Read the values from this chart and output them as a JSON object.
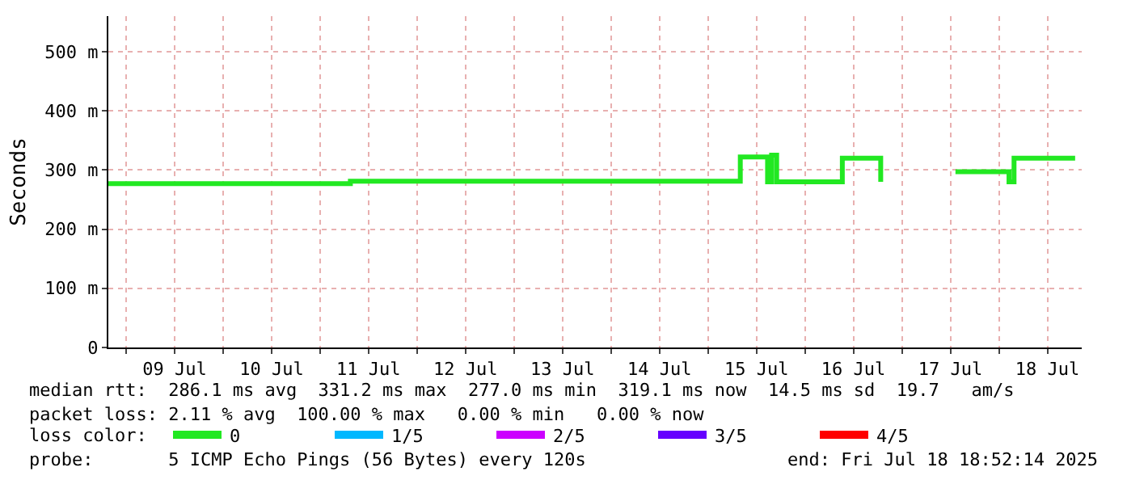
{
  "chart_data": {
    "type": "step",
    "ylabel": "Seconds",
    "x": [
      "2025-07-08T19:36",
      "2025-07-11T07:30",
      "2025-07-15T08:00",
      "2025-07-15T14:45",
      "2025-07-15T15:45",
      "2025-07-15T17:00",
      "2025-07-16T09:15",
      "2025-07-16T18:45",
      "2025-07-17T08:00",
      "2025-07-17T13:15",
      "2025-07-18T02:30",
      "2025-07-18T03:45",
      "2025-07-18T18:52"
    ],
    "series": [
      {
        "name": "0",
        "color": "#22e822",
        "values": [
          277,
          281,
          322,
          280,
          325,
          280,
          320,
          280,
          null,
          297,
          280,
          320,
          320
        ]
      },
      {
        "name": "1/5",
        "color": "#00b8ff",
        "values": [
          null,
          null,
          null,
          null,
          null,
          null,
          null,
          null,
          null,
          null,
          null,
          null,
          null
        ]
      },
      {
        "name": "2/5",
        "color": "#cc00ff",
        "values": [
          null,
          null,
          null,
          null,
          null,
          null,
          null,
          null,
          null,
          null,
          null,
          null,
          null
        ]
      },
      {
        "name": "3/5",
        "color": "#6600ff",
        "values": [
          null,
          null,
          null,
          null,
          null,
          null,
          null,
          null,
          null,
          null,
          null,
          null,
          null
        ]
      },
      {
        "name": "4/5",
        "color": "#ff0000",
        "values": [
          null,
          null,
          null,
          null,
          null,
          null,
          null,
          null,
          null,
          null,
          null,
          null,
          null
        ]
      }
    ],
    "xlim": [
      "2025-07-08T19:36",
      "2025-07-18T20:30"
    ],
    "xticks": [
      {
        "value": "2025-07-09",
        "label": null
      },
      {
        "value": "2025-07-09T12:00",
        "label": "09 Jul"
      },
      {
        "value": "2025-07-10",
        "label": null
      },
      {
        "value": "2025-07-10T12:00",
        "label": "10 Jul"
      },
      {
        "value": "2025-07-11",
        "label": null
      },
      {
        "value": "2025-07-11T12:00",
        "label": "11 Jul"
      },
      {
        "value": "2025-07-12",
        "label": null
      },
      {
        "value": "2025-07-12T12:00",
        "label": "12 Jul"
      },
      {
        "value": "2025-07-13",
        "label": null
      },
      {
        "value": "2025-07-13T12:00",
        "label": "13 Jul"
      },
      {
        "value": "2025-07-14",
        "label": null
      },
      {
        "value": "2025-07-14T12:00",
        "label": "14 Jul"
      },
      {
        "value": "2025-07-15",
        "label": null
      },
      {
        "value": "2025-07-15T12:00",
        "label": "15 Jul"
      },
      {
        "value": "2025-07-16",
        "label": null
      },
      {
        "value": "2025-07-16T12:00",
        "label": "16 Jul"
      },
      {
        "value": "2025-07-17",
        "label": null
      },
      {
        "value": "2025-07-17T12:00",
        "label": "17 Jul"
      },
      {
        "value": "2025-07-18",
        "label": null
      },
      {
        "value": "2025-07-18T12:00",
        "label": "18 Jul"
      }
    ],
    "ylim": [
      0,
      560
    ],
    "yticks": [
      {
        "value": 0,
        "label": "0"
      },
      {
        "value": 100,
        "label": "100 m"
      },
      {
        "value": 200,
        "label": "200 m"
      },
      {
        "value": 300,
        "label": "300 m"
      },
      {
        "value": 400,
        "label": "400 m"
      },
      {
        "value": 500,
        "label": "500 m"
      }
    ],
    "grid": true,
    "legend": "bottom",
    "marker": "none",
    "line_style": "solid",
    "annotations": [
      "median rtt:  286.1 ms avg  331.2 ms max  277.0 ms min  319.1 ms now  14.5 ms sd  19.7   am/s",
      "packet loss: 2.11 % avg  100.00 % max   0.00 % min   0.00 % now",
      "loss color:",
      "probe:       5 ICMP Echo Pings (56 Bytes) every 120s",
      "end: Fri Jul 18 18:52:14 2025"
    ]
  }
}
